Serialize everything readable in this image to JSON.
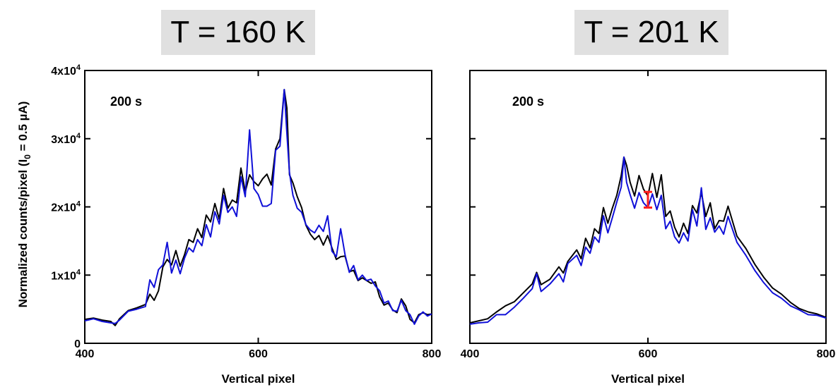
{
  "chart_data": [
    {
      "type": "line",
      "panel_title": "T = 160 K",
      "annotation": "200 s",
      "xlabel": "Vertical pixel",
      "ylabel": "Normalized counts/pixel (I₀ = 0.5 µA)",
      "xlim": [
        400,
        800
      ],
      "ylim": [
        0,
        40000
      ],
      "x_ticks": [
        400,
        600,
        800
      ],
      "y_ticks": [
        {
          "value": 0,
          "mantissa": "0",
          "exp": ""
        },
        {
          "value": 10000,
          "mantissa": "1x10",
          "exp": "4"
        },
        {
          "value": 20000,
          "mantissa": "2x10",
          "exp": "4"
        },
        {
          "value": 30000,
          "mantissa": "3x10",
          "exp": "4"
        },
        {
          "value": 40000,
          "mantissa": "4x10",
          "exp": "4"
        }
      ],
      "grid": false,
      "series": [
        {
          "color": "#000000",
          "x": [
            400,
            410,
            420,
            430,
            435,
            440,
            450,
            460,
            470,
            475,
            480,
            485,
            490,
            495,
            500,
            505,
            510,
            515,
            520,
            525,
            530,
            535,
            540,
            545,
            550,
            555,
            560,
            565,
            570,
            575,
            580,
            585,
            590,
            595,
            600,
            605,
            610,
            615,
            620,
            625,
            630,
            633,
            636,
            640,
            645,
            650,
            655,
            660,
            665,
            670,
            675,
            680,
            685,
            690,
            695,
            700,
            705,
            710,
            715,
            720,
            725,
            730,
            735,
            740,
            745,
            750,
            755,
            760,
            765,
            770,
            775,
            780,
            785,
            790,
            795,
            800
          ],
          "y": [
            3500,
            3700,
            3400,
            3200,
            2600,
            3600,
            4800,
            5200,
            5700,
            7200,
            6300,
            7700,
            11200,
            12300,
            11500,
            13600,
            11300,
            13000,
            15200,
            14800,
            16800,
            15500,
            18800,
            17800,
            20500,
            18200,
            22700,
            19800,
            21000,
            20600,
            25700,
            22200,
            24700,
            23700,
            23100,
            24100,
            24800,
            23200,
            28500,
            30000,
            37200,
            34500,
            24700,
            23500,
            21500,
            19900,
            17300,
            16000,
            15200,
            15800,
            14400,
            15800,
            14000,
            12300,
            12700,
            12800,
            10500,
            10700,
            9200,
            9600,
            9200,
            8800,
            9000,
            6800,
            5600,
            5900,
            4900,
            4500,
            6500,
            5500,
            3500,
            3000,
            4200,
            4500,
            4200,
            4300
          ]
        },
        {
          "color": "#1010d8",
          "x": [
            400,
            410,
            420,
            430,
            435,
            440,
            450,
            460,
            470,
            475,
            480,
            485,
            490,
            495,
            500,
            505,
            510,
            515,
            520,
            525,
            530,
            535,
            540,
            545,
            550,
            555,
            560,
            565,
            570,
            575,
            580,
            585,
            590,
            595,
            600,
            605,
            610,
            615,
            620,
            625,
            630,
            633,
            636,
            640,
            645,
            650,
            655,
            660,
            665,
            670,
            675,
            680,
            685,
            690,
            695,
            700,
            705,
            710,
            715,
            720,
            725,
            730,
            735,
            740,
            745,
            750,
            755,
            760,
            765,
            770,
            775,
            780,
            785,
            790,
            795,
            800
          ],
          "y": [
            3300,
            3600,
            3200,
            3000,
            2900,
            3400,
            4700,
            5000,
            5400,
            9300,
            8200,
            10800,
            11500,
            14800,
            10300,
            12200,
            10200,
            12500,
            14000,
            13400,
            15200,
            14300,
            17400,
            15600,
            19300,
            17500,
            21700,
            19200,
            20000,
            18600,
            24400,
            21500,
            31300,
            22700,
            21800,
            20100,
            20100,
            20500,
            28300,
            28900,
            37200,
            30800,
            25000,
            21700,
            19800,
            19200,
            17400,
            16600,
            16200,
            17300,
            16400,
            18700,
            13500,
            12700,
            16800,
            13000,
            10400,
            11400,
            9300,
            10000,
            9200,
            9400,
            8400,
            7700,
            5900,
            6200,
            4800,
            4700,
            6300,
            4800,
            4200,
            2800,
            4000,
            4600,
            4000,
            4300
          ]
        }
      ]
    },
    {
      "type": "line",
      "panel_title": "T = 201 K",
      "annotation": "200 s",
      "xlabel": "Vertical pixel",
      "xlim": [
        400,
        800
      ],
      "ylim": [
        0,
        40000
      ],
      "x_ticks": [
        400,
        600,
        800
      ],
      "grid": false,
      "error_bar": {
        "x": 600,
        "y_low": 19900,
        "y_high": 22200,
        "color": "#ff2020"
      },
      "series": [
        {
          "color": "#000000",
          "x": [
            400,
            410,
            420,
            430,
            440,
            450,
            460,
            470,
            475,
            480,
            490,
            500,
            505,
            510,
            520,
            525,
            530,
            535,
            540,
            545,
            550,
            555,
            560,
            565,
            570,
            573,
            576,
            580,
            585,
            590,
            595,
            600,
            605,
            610,
            615,
            620,
            625,
            630,
            635,
            640,
            645,
            650,
            655,
            660,
            665,
            670,
            675,
            680,
            685,
            690,
            700,
            710,
            720,
            730,
            740,
            750,
            760,
            770,
            780,
            790,
            800
          ],
          "y": [
            3000,
            3300,
            3600,
            4600,
            5500,
            6100,
            7400,
            8700,
            10400,
            8600,
            9400,
            11200,
            10300,
            12000,
            13700,
            12400,
            15400,
            14000,
            16800,
            16100,
            19900,
            17600,
            19800,
            21700,
            24600,
            27300,
            26100,
            23600,
            21600,
            24600,
            22600,
            21600,
            24900,
            21400,
            24700,
            18600,
            19400,
            17000,
            15600,
            17600,
            16100,
            20200,
            19100,
            22100,
            18600,
            20600,
            16800,
            18000,
            17900,
            20100,
            15700,
            13900,
            11600,
            9700,
            8100,
            7200,
            6000,
            5100,
            4600,
            4300,
            3800
          ]
        },
        {
          "color": "#1010d8",
          "x": [
            400,
            410,
            420,
            430,
            440,
            450,
            460,
            470,
            475,
            480,
            490,
            500,
            505,
            510,
            520,
            525,
            530,
            535,
            540,
            545,
            550,
            555,
            560,
            565,
            570,
            573,
            576,
            580,
            585,
            590,
            595,
            600,
            605,
            610,
            615,
            620,
            625,
            630,
            635,
            640,
            645,
            650,
            655,
            660,
            665,
            670,
            675,
            680,
            685,
            690,
            700,
            710,
            720,
            730,
            740,
            750,
            760,
            770,
            780,
            790,
            800
          ],
          "y": [
            2800,
            3000,
            3100,
            4200,
            4200,
            5300,
            6600,
            8000,
            10200,
            7600,
            8700,
            10200,
            9000,
            11700,
            12900,
            11400,
            14100,
            13200,
            15600,
            14800,
            18700,
            16200,
            18400,
            20700,
            22900,
            27300,
            23600,
            21800,
            19800,
            22100,
            20600,
            19900,
            21900,
            19600,
            21700,
            16800,
            17900,
            15600,
            14700,
            16200,
            15000,
            19600,
            17200,
            22800,
            16700,
            18400,
            16300,
            17200,
            16000,
            18600,
            14800,
            12900,
            10700,
            8900,
            7400,
            6600,
            5500,
            4900,
            4200,
            4100,
            3700
          ]
        }
      ]
    }
  ]
}
